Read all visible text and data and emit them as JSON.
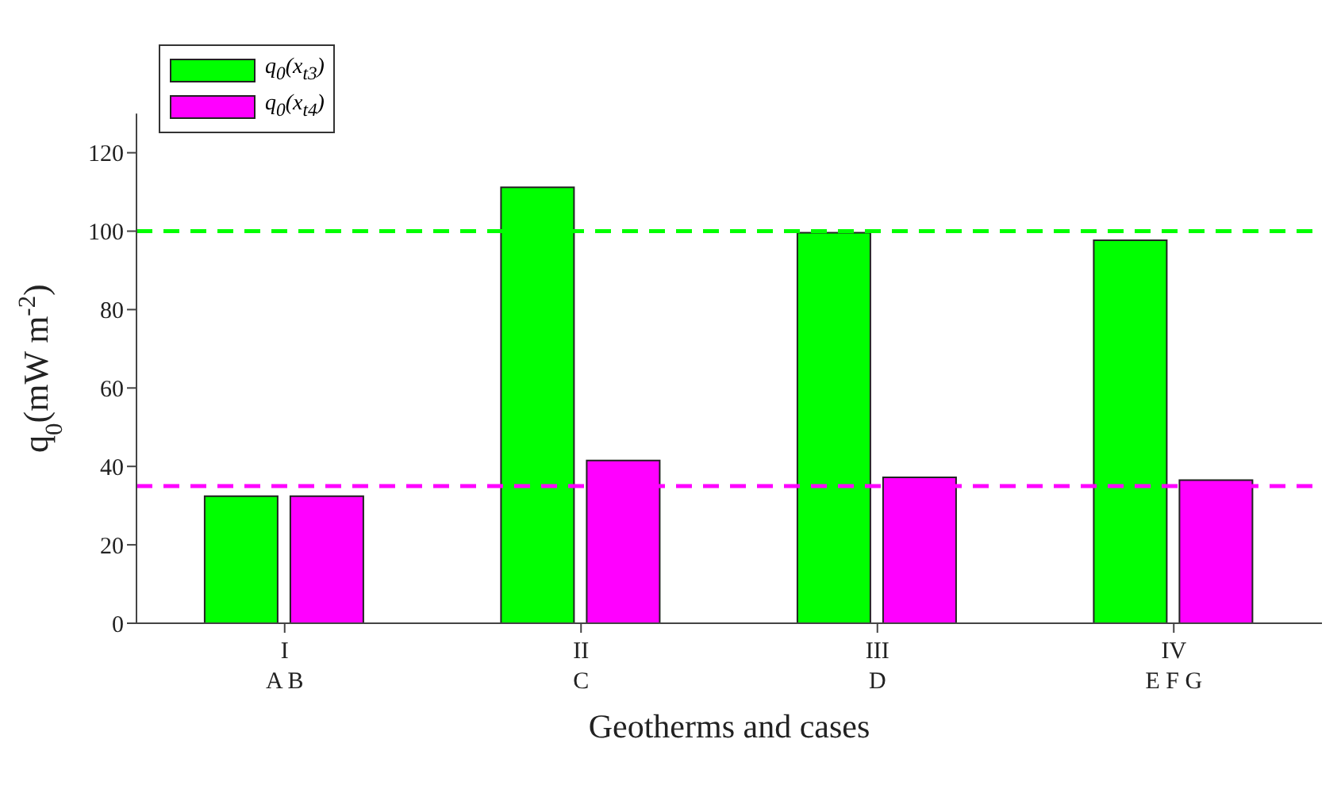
{
  "chart_data": {
    "type": "bar",
    "xlabel": "Geotherms and cases",
    "ylabel": "q$_{0}$(mW m$^{-2}$)",
    "categories": [
      "I\nA B",
      "II\nC",
      "III\nD",
      "IV\nE F G"
    ],
    "series": [
      {
        "name": "q$_{0}$(x$_{t3}$)",
        "color": "#00ff00",
        "values": [
          32.4,
          111.2,
          99.6,
          97.7
        ]
      },
      {
        "name": "q$_{0}$(x$_{t4}$)",
        "color": "#ff00ff",
        "values": [
          32.4,
          41.5,
          37.2,
          36.5
        ]
      }
    ],
    "ylim": [
      0,
      130
    ],
    "yticks": [
      0,
      20,
      40,
      60,
      80,
      100,
      120
    ],
    "ref_lines": [
      {
        "axis": "y",
        "value": 100,
        "color": "#00ff00",
        "line_style": "dashed"
      },
      {
        "axis": "y",
        "value": 35,
        "color": "#ff00ff",
        "line_style": "dashed"
      }
    ],
    "legend": "top left",
    "grid": false
  }
}
